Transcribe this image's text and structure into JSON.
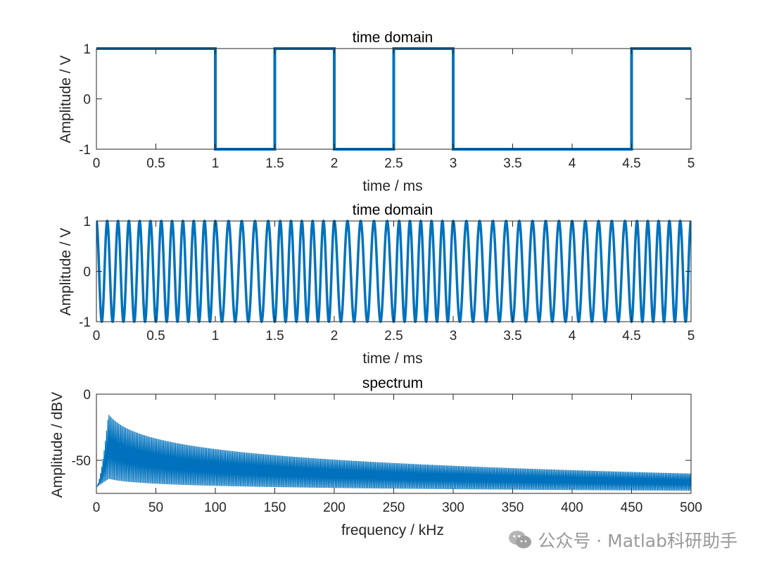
{
  "colors": {
    "line": "#0072BD",
    "axes": "#262626",
    "watermark": "#9a9a9a"
  },
  "watermark": {
    "icon": "wechat-icon",
    "text": "公众号 · Matlab科研助手"
  },
  "chart_data": [
    {
      "type": "line",
      "title": "time domain",
      "xlabel": "time / ms",
      "ylabel": "Amplitude / V",
      "xlim": [
        0,
        5
      ],
      "ylim": [
        -1,
        1
      ],
      "xticks": [
        "0",
        "0.5",
        "1",
        "1.5",
        "2",
        "2.5",
        "3",
        "3.5",
        "4",
        "4.5",
        "5"
      ],
      "yticks": [
        "-1",
        "0",
        "1"
      ],
      "series": [
        {
          "style": "step",
          "x": [
            0,
            1,
            1,
            1.5,
            1.5,
            2,
            2,
            2.5,
            2.5,
            3,
            3,
            4.5,
            4.5,
            5
          ],
          "y": [
            1,
            1,
            -1,
            -1,
            1,
            1,
            -1,
            -1,
            1,
            1,
            -1,
            -1,
            1,
            1
          ]
        }
      ]
    },
    {
      "type": "line",
      "title": "time domain",
      "xlabel": "time / ms",
      "ylabel": "Amplitude / V",
      "xlim": [
        0,
        5
      ],
      "ylim": [
        -1,
        1
      ],
      "xticks": [
        "0",
        "0.5",
        "1",
        "1.5",
        "2",
        "2.5",
        "3",
        "3.5",
        "4",
        "4.5",
        "5"
      ],
      "yticks": [
        "-1",
        "0",
        "1"
      ],
      "series": [
        {
          "style": "fm-sine",
          "carrier_freq_khz": 10,
          "bits": [
            1,
            -1,
            1,
            -1,
            1,
            -1,
            1
          ],
          "bit_edges_ms": [
            0,
            1,
            1.5,
            2,
            2.5,
            3,
            4.5,
            5
          ],
          "amplitude": 1
        }
      ]
    },
    {
      "type": "line",
      "title": "spectrum",
      "xlabel": "frequency / kHz",
      "ylabel": "Amplitude / dBV",
      "xlim": [
        0,
        500
      ],
      "ylim": [
        -75,
        0
      ],
      "xticks": [
        "0",
        "50",
        "100",
        "150",
        "200",
        "250",
        "300",
        "350",
        "400",
        "450",
        "500"
      ],
      "yticks": [
        "-50",
        "0"
      ],
      "series": [
        {
          "style": "spectrum",
          "peak_freq_khz": 10,
          "peak_db": -15,
          "floor_db_at_0": -70,
          "envelope_db_at_500": -60,
          "base_db_at_500": -73
        }
      ]
    }
  ]
}
